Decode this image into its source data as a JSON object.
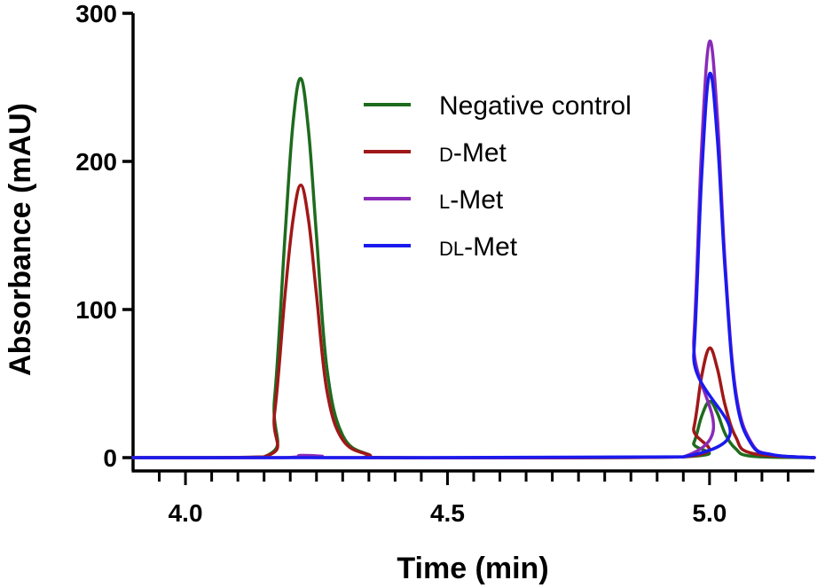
{
  "chart_data": {
    "type": "line",
    "xlabel": "Time (min)",
    "ylabel": "Absorbance (mAU)",
    "xlim": [
      3.9,
      5.2
    ],
    "ylim": [
      0,
      300
    ],
    "x_ticks": [
      "4.0",
      "4.5",
      "5.0"
    ],
    "x_tick_values": [
      4.0,
      4.5,
      5.0
    ],
    "y_ticks": [
      "0",
      "100",
      "200",
      "300"
    ],
    "y_tick_values": [
      0,
      100,
      200,
      300
    ],
    "x_minor_step": 0.05,
    "legend_position": "upper-center",
    "series": [
      {
        "name": "Negative control",
        "name_parts": [
          {
            "text": "Negative control",
            "small_caps": false
          }
        ],
        "color": "#1e6b1e",
        "x": [
          3.9,
          4.15,
          4.17,
          4.19,
          4.205,
          4.22,
          4.235,
          4.25,
          4.27,
          4.3,
          4.35,
          4.4,
          4.95,
          4.97,
          4.985,
          5.0,
          5.015,
          5.03,
          5.05,
          5.08,
          5.2
        ],
        "values": [
          0,
          0.5,
          40,
          150,
          225,
          256,
          220,
          150,
          60,
          15,
          2,
          0,
          0.5,
          10,
          28,
          38,
          30,
          16,
          6,
          1,
          0
        ]
      },
      {
        "name": "D-Met",
        "name_parts": [
          {
            "text": "D",
            "small_caps": true
          },
          {
            "text": "-Met",
            "small_caps": false
          }
        ],
        "color": "#a01818",
        "x": [
          3.9,
          4.15,
          4.17,
          4.19,
          4.205,
          4.22,
          4.235,
          4.25,
          4.27,
          4.3,
          4.35,
          4.4,
          4.95,
          4.97,
          4.985,
          5.0,
          5.015,
          5.03,
          5.05,
          5.08,
          5.2
        ],
        "values": [
          0,
          0.5,
          30,
          110,
          160,
          184,
          160,
          110,
          45,
          12,
          2,
          0,
          0.5,
          20,
          55,
          74,
          60,
          35,
          14,
          3,
          0
        ]
      },
      {
        "name": "L-Met",
        "name_parts": [
          {
            "text": "L",
            "small_caps": true
          },
          {
            "text": "-Met",
            "small_caps": false
          }
        ],
        "color": "#8a2bb8",
        "x": [
          3.9,
          4.18,
          4.22,
          4.26,
          4.3,
          4.95,
          4.97,
          4.985,
          5.0,
          5.015,
          5.03,
          5.05,
          5.08,
          5.12,
          5.2
        ],
        "values": [
          0,
          0,
          1.5,
          1,
          0,
          0.5,
          80,
          210,
          281,
          230,
          130,
          45,
          10,
          2,
          0
        ]
      },
      {
        "name": "DL-Met",
        "name_parts": [
          {
            "text": "DL",
            "small_caps": true
          },
          {
            "text": "-Met",
            "small_caps": false
          }
        ],
        "color": "#1a1aee",
        "x": [
          3.9,
          4.95,
          4.97,
          4.985,
          5.0,
          5.015,
          5.03,
          5.05,
          5.08,
          5.12,
          5.2
        ],
        "values": [
          0,
          0.5,
          70,
          190,
          259,
          215,
          125,
          42,
          9,
          2,
          0
        ]
      }
    ],
    "draw_order": [
      0,
      1,
      2,
      3
    ]
  }
}
